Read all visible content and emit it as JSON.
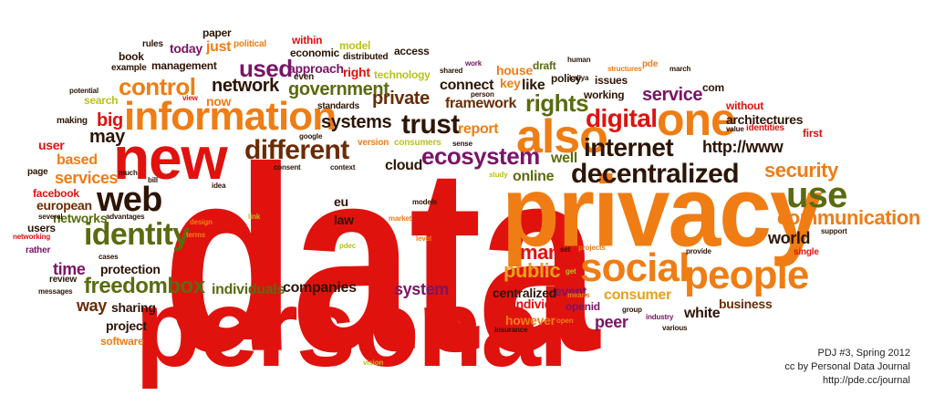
{
  "colors": {
    "red": "#e0120e",
    "orange": "#ef7d14",
    "gold": "#e9a116",
    "olive": "#5a6b10",
    "purple": "#7a1466",
    "brown": "#6a2c05",
    "dark": "#2d1505",
    "yellow": "#b8c21a"
  },
  "words": [
    {
      "text": "data",
      "color": "red"
    },
    {
      "text": "privacy",
      "color": "orange"
    },
    {
      "text": "personal",
      "color": "red"
    },
    {
      "text": "new",
      "color": "red"
    },
    {
      "text": "information",
      "color": "orange"
    },
    {
      "text": "one",
      "color": "orange"
    },
    {
      "text": "also",
      "color": "orange"
    },
    {
      "text": "social",
      "color": "orange"
    },
    {
      "text": "people",
      "color": "orange"
    },
    {
      "text": "web",
      "color": "dark"
    },
    {
      "text": "identity",
      "color": "olive"
    },
    {
      "text": "use",
      "color": "olive"
    },
    {
      "text": "decentralized",
      "color": "dark"
    },
    {
      "text": "different",
      "color": "brown"
    },
    {
      "text": "digital",
      "color": "red"
    },
    {
      "text": "internet",
      "color": "dark"
    },
    {
      "text": "ecosystem",
      "color": "purple"
    },
    {
      "text": "control",
      "color": "orange"
    },
    {
      "text": "trust",
      "color": "dark"
    },
    {
      "text": "rights",
      "color": "olive"
    },
    {
      "text": "communication",
      "color": "orange"
    },
    {
      "text": "freedombox",
      "color": "olive"
    },
    {
      "text": "used",
      "color": "purple"
    },
    {
      "text": "public",
      "color": "gold"
    },
    {
      "text": "many",
      "color": "red"
    },
    {
      "text": "security",
      "color": "orange"
    },
    {
      "text": "http://www",
      "color": "dark"
    },
    {
      "text": "service",
      "color": "purple"
    },
    {
      "text": "big",
      "color": "red"
    },
    {
      "text": "may",
      "color": "dark"
    },
    {
      "text": "network",
      "color": "dark"
    },
    {
      "text": "government",
      "color": "olive"
    },
    {
      "text": "systems",
      "color": "dark"
    },
    {
      "text": "private",
      "color": "brown"
    },
    {
      "text": "framework",
      "color": "brown"
    },
    {
      "text": "connect",
      "color": "dark"
    },
    {
      "text": "report",
      "color": "orange"
    },
    {
      "text": "online",
      "color": "olive"
    },
    {
      "text": "cloud",
      "color": "dark"
    },
    {
      "text": "well",
      "color": "olive"
    },
    {
      "text": "world",
      "color": "dark"
    },
    {
      "text": "consumer",
      "color": "gold"
    },
    {
      "text": "system",
      "color": "purple"
    },
    {
      "text": "companies",
      "color": "dark"
    },
    {
      "text": "individuals",
      "color": "olive"
    },
    {
      "text": "time",
      "color": "purple"
    },
    {
      "text": "services",
      "color": "orange"
    },
    {
      "text": "based",
      "color": "orange"
    },
    {
      "text": "user",
      "color": "red"
    },
    {
      "text": "protection",
      "color": "dark"
    },
    {
      "text": "sharing",
      "color": "dark"
    },
    {
      "text": "way",
      "color": "brown"
    },
    {
      "text": "project",
      "color": "dark"
    },
    {
      "text": "software",
      "color": "orange"
    },
    {
      "text": "business",
      "color": "brown"
    },
    {
      "text": "white",
      "color": "dark"
    },
    {
      "text": "peer",
      "color": "purple"
    },
    {
      "text": "event",
      "color": "purple"
    },
    {
      "text": "centralized",
      "color": "dark"
    },
    {
      "text": "individual",
      "color": "red"
    },
    {
      "text": "however",
      "color": "orange"
    },
    {
      "text": "openid",
      "color": "purple"
    },
    {
      "text": "networks",
      "color": "olive"
    },
    {
      "text": "european",
      "color": "brown"
    },
    {
      "text": "facebook",
      "color": "red"
    },
    {
      "text": "users",
      "color": "dark"
    },
    {
      "text": "eu",
      "color": "dark"
    },
    {
      "text": "law",
      "color": "dark"
    },
    {
      "text": "like",
      "color": "dark"
    },
    {
      "text": "architectures",
      "color": "dark"
    },
    {
      "text": "com",
      "color": "dark"
    },
    {
      "text": "without",
      "color": "red"
    },
    {
      "text": "first",
      "color": "red"
    },
    {
      "text": "just",
      "color": "orange"
    },
    {
      "text": "today",
      "color": "purple"
    },
    {
      "text": "management",
      "color": "dark"
    },
    {
      "text": "approach",
      "color": "purple"
    },
    {
      "text": "right",
      "color": "red"
    },
    {
      "text": "technology",
      "color": "yellow"
    },
    {
      "text": "working",
      "color": "dark"
    },
    {
      "text": "house",
      "color": "orange"
    },
    {
      "text": "key",
      "color": "orange"
    },
    {
      "text": "draft",
      "color": "olive"
    },
    {
      "text": "policy",
      "color": "dark"
    },
    {
      "text": "issues",
      "color": "dark"
    },
    {
      "text": "within",
      "color": "red"
    },
    {
      "text": "model",
      "color": "yellow"
    },
    {
      "text": "economic",
      "color": "dark"
    },
    {
      "text": "access",
      "color": "dark"
    },
    {
      "text": "distributed",
      "color": "dark"
    },
    {
      "text": "even",
      "color": "dark"
    },
    {
      "text": "paper",
      "color": "dark"
    },
    {
      "text": "rules",
      "color": "dark"
    },
    {
      "text": "book",
      "color": "dark"
    },
    {
      "text": "political",
      "color": "orange"
    },
    {
      "text": "example",
      "color": "dark"
    },
    {
      "text": "now",
      "color": "orange"
    },
    {
      "text": "search",
      "color": "yellow"
    },
    {
      "text": "potential",
      "color": "dark"
    },
    {
      "text": "making",
      "color": "dark"
    },
    {
      "text": "view",
      "color": "red"
    },
    {
      "text": "standards",
      "color": "dark"
    },
    {
      "text": "google",
      "color": "dark"
    },
    {
      "text": "version",
      "color": "orange"
    },
    {
      "text": "consumers",
      "color": "yellow"
    },
    {
      "text": "sense",
      "color": "dark"
    },
    {
      "text": "shared",
      "color": "dark"
    },
    {
      "text": "person",
      "color": "dark"
    },
    {
      "text": "work",
      "color": "purple"
    },
    {
      "text": "human",
      "color": "dark"
    },
    {
      "text": "pde",
      "color": "orange"
    },
    {
      "text": "kaliya",
      "color": "dark"
    },
    {
      "text": "structures",
      "color": "orange"
    },
    {
      "text": "march",
      "color": "dark"
    },
    {
      "text": "value",
      "color": "dark"
    },
    {
      "text": "identities",
      "color": "red"
    },
    {
      "text": "page",
      "color": "dark"
    },
    {
      "text": "much",
      "color": "dark"
    },
    {
      "text": "bill",
      "color": "dark"
    },
    {
      "text": "consent",
      "color": "dark"
    },
    {
      "text": "context",
      "color": "dark"
    },
    {
      "text": "study",
      "color": "yellow"
    },
    {
      "text": "idea",
      "color": "dark"
    },
    {
      "text": "design",
      "color": "orange"
    },
    {
      "text": "link",
      "color": "yellow"
    },
    {
      "text": "terms",
      "color": "orange"
    },
    {
      "text": "models",
      "color": "dark"
    },
    {
      "text": "market",
      "color": "orange"
    },
    {
      "text": "several",
      "color": "dark"
    },
    {
      "text": "advantages",
      "color": "dark"
    },
    {
      "text": "networking",
      "color": "red"
    },
    {
      "text": "rather",
      "color": "purple"
    },
    {
      "text": "cases",
      "color": "dark"
    },
    {
      "text": "pdec",
      "color": "yellow"
    },
    {
      "text": "level",
      "color": "orange"
    },
    {
      "text": "review",
      "color": "dark"
    },
    {
      "text": "messages",
      "color": "dark"
    },
    {
      "text": "set",
      "color": "dark"
    },
    {
      "text": "get",
      "color": "yellow"
    },
    {
      "text": "projects",
      "color": "orange"
    },
    {
      "text": "provide",
      "color": "dark"
    },
    {
      "text": "single",
      "color": "red"
    },
    {
      "text": "support",
      "color": "dark"
    },
    {
      "text": "means",
      "color": "orange"
    },
    {
      "text": "group",
      "color": "dark"
    },
    {
      "text": "industry",
      "color": "purple"
    },
    {
      "text": "various",
      "color": "dark"
    },
    {
      "text": "open",
      "color": "orange"
    },
    {
      "text": "insurance",
      "color": "dark"
    },
    {
      "text": "vision",
      "color": "yellow"
    }
  ],
  "credits": {
    "line1": "PDJ #3, Spring 2012",
    "line2": "cc by Personal Data Journal",
    "line3": "http://pde.cc/journal"
  }
}
